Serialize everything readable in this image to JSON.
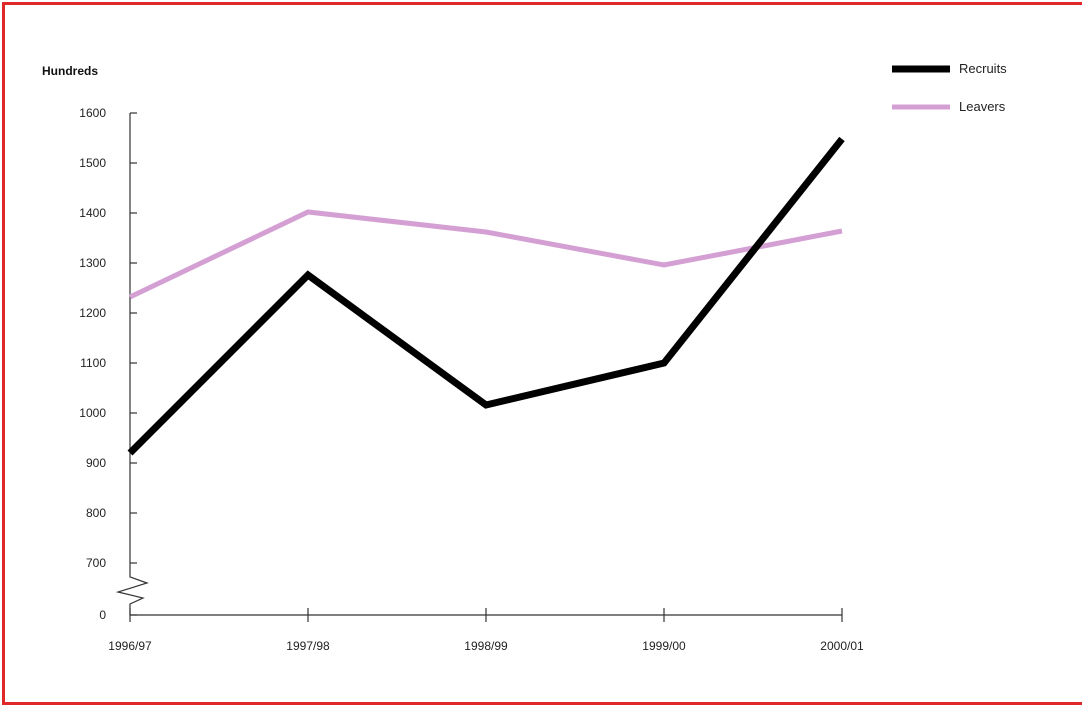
{
  "chart_data": {
    "type": "line",
    "title": "",
    "xlabel": "",
    "ylabel": "Hundreds",
    "categories": [
      "1996/97",
      "1997/98",
      "1998/99",
      "1999/00",
      "2000/01"
    ],
    "y_ticks": [
      0,
      700,
      800,
      900,
      1000,
      1100,
      1200,
      1300,
      1400,
      1500,
      1600
    ],
    "ylim": [
      600,
      1600
    ],
    "axis_break": true,
    "grid": false,
    "legend_position": "top-right",
    "series": [
      {
        "name": "Recruits",
        "color": "#000000",
        "values": [
          920,
          1276,
          1016,
          1100,
          1548
        ]
      },
      {
        "name": "Leavers",
        "color": "#d4a0d4",
        "values": [
          1232,
          1402,
          1362,
          1296,
          1364
        ]
      }
    ]
  }
}
